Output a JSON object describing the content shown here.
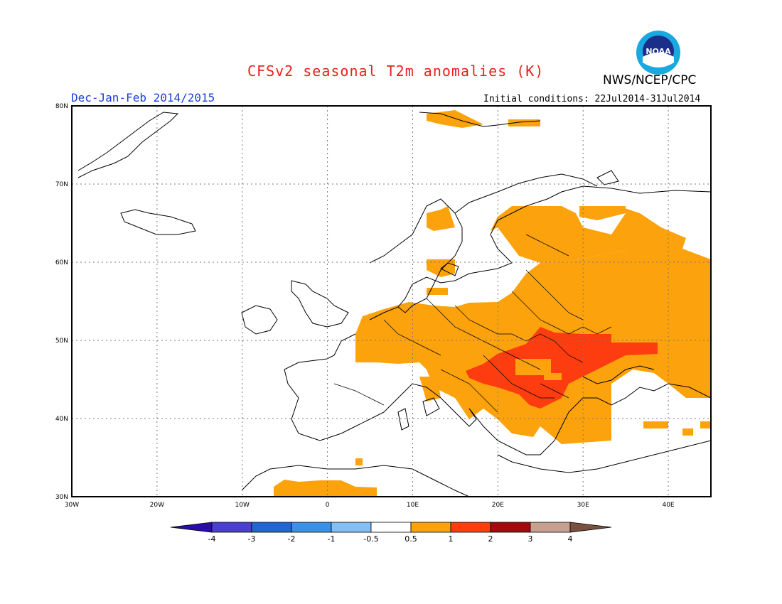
{
  "header": {
    "title": "CFSv2 seasonal T2m anomalies (K)",
    "org": "NWS/NCEP/CPC",
    "season": "Dec-Jan-Feb 2014/2015",
    "initial_conditions": "Initial conditions: 22Jul2014-31Jul2014",
    "logo_text": "NOAA"
  },
  "map": {
    "lat_labels": [
      "80N",
      "70N",
      "60N",
      "50N",
      "40N",
      "30N"
    ],
    "lon_labels": [
      "30W",
      "20W",
      "10W",
      "0",
      "10E",
      "20E",
      "30E",
      "40E"
    ],
    "lat_range": [
      30,
      80
    ],
    "lon_range": [
      -30,
      45
    ],
    "grid": "dotted"
  },
  "colorbar": {
    "labels": [
      "-4",
      "-3",
      "-2",
      "-1",
      "-0.5",
      "0.5",
      "1",
      "2",
      "3",
      "4"
    ],
    "colors": [
      "#2a0da6",
      "#4b3fd0",
      "#2466d1",
      "#3d90e8",
      "#84bff2",
      "#ffffff",
      "#fca20c",
      "#fd3c10",
      "#a3090e",
      "#c8a090",
      "#7a5040"
    ]
  },
  "colors": {
    "anom_0_5_1": "#fca20c",
    "anom_1_2": "#fd3c10",
    "title": "#e8201a",
    "season": "#1a3fd8"
  }
}
